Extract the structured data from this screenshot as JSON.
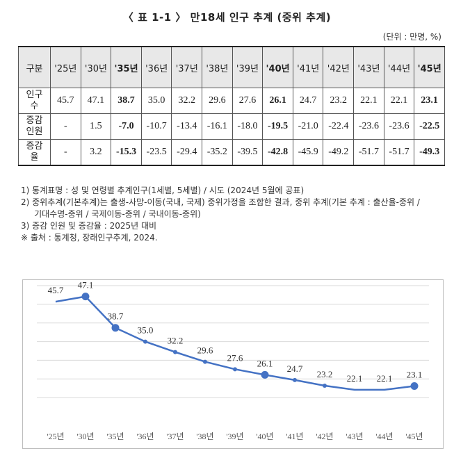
{
  "title": "〈 표 1-1 〉 만18세 인구 추계 (중위 추계)",
  "unit": "(단위 : 만명, %)",
  "table": {
    "corner": "구분",
    "years": [
      "'25년",
      "'30년",
      "'35년",
      "'36년",
      "'37년",
      "'38년",
      "'39년",
      "'40년",
      "'41년",
      "'42년",
      "'43년",
      "'44년",
      "'45년"
    ],
    "rows": [
      {
        "label_line1": "인구",
        "label_line2": "수",
        "values": [
          "45.7",
          "47.1",
          "38.7",
          "35.0",
          "32.2",
          "29.6",
          "27.6",
          "26.1",
          "24.7",
          "23.2",
          "22.1",
          "22.1",
          "23.1"
        ]
      },
      {
        "label_line1": "증감",
        "label_line2": "인원",
        "values": [
          "-",
          "1.5",
          "-7.0",
          "-10.7",
          "-13.4",
          "-16.1",
          "-18.0",
          "-19.5",
          "-21.0",
          "-22.4",
          "-23.6",
          "-23.6",
          "-22.5"
        ]
      },
      {
        "label_line1": "증감",
        "label_line2": "율",
        "values": [
          "-",
          "3.2",
          "-15.3",
          "-23.5",
          "-29.4",
          "-35.2",
          "-39.5",
          "-42.8",
          "-45.9",
          "-49.2",
          "-51.7",
          "-51.7",
          "-49.3"
        ]
      }
    ]
  },
  "notes": [
    "1) 통계표명 : 성 및 연령별 추계인구(1세별, 5세별) / 시도 (2024년 5월에 공표)",
    "2) 중위추계(기본추계)는 출생-사망-이동(국내, 국제) 중위가정을 조합한 결과, 중위 추계(기본 추계 : 출산율-중위 /",
    "     기대수명-중위 / 국제이동-중위 / 국내이동-중위)",
    "3) 증감 인원 및 증감율 : 2025년 대비",
    "※ 출처 : 통계청, 장래인구추계, 2024."
  ],
  "chart_data": {
    "type": "line",
    "categories": [
      "'25년",
      "'30년",
      "'35년",
      "'36년",
      "'37년",
      "'38년",
      "'39년",
      "'40년",
      "'41년",
      "'42년",
      "'43년",
      "'44년",
      "'45년"
    ],
    "values": [
      45.7,
      47.1,
      38.7,
      35.0,
      32.2,
      29.6,
      27.6,
      26.1,
      24.7,
      23.2,
      22.1,
      22.1,
      23.1
    ],
    "data_labels": [
      "45.7",
      "47.1",
      "38.7",
      "35.0",
      "32.2",
      "29.6",
      "27.6",
      "26.1",
      "24.7",
      "23.2",
      "22.1",
      "22.1",
      "23.1"
    ],
    "title": "",
    "xlabel": "",
    "ylabel": "",
    "grid": true,
    "line_color": "#4472c4"
  }
}
